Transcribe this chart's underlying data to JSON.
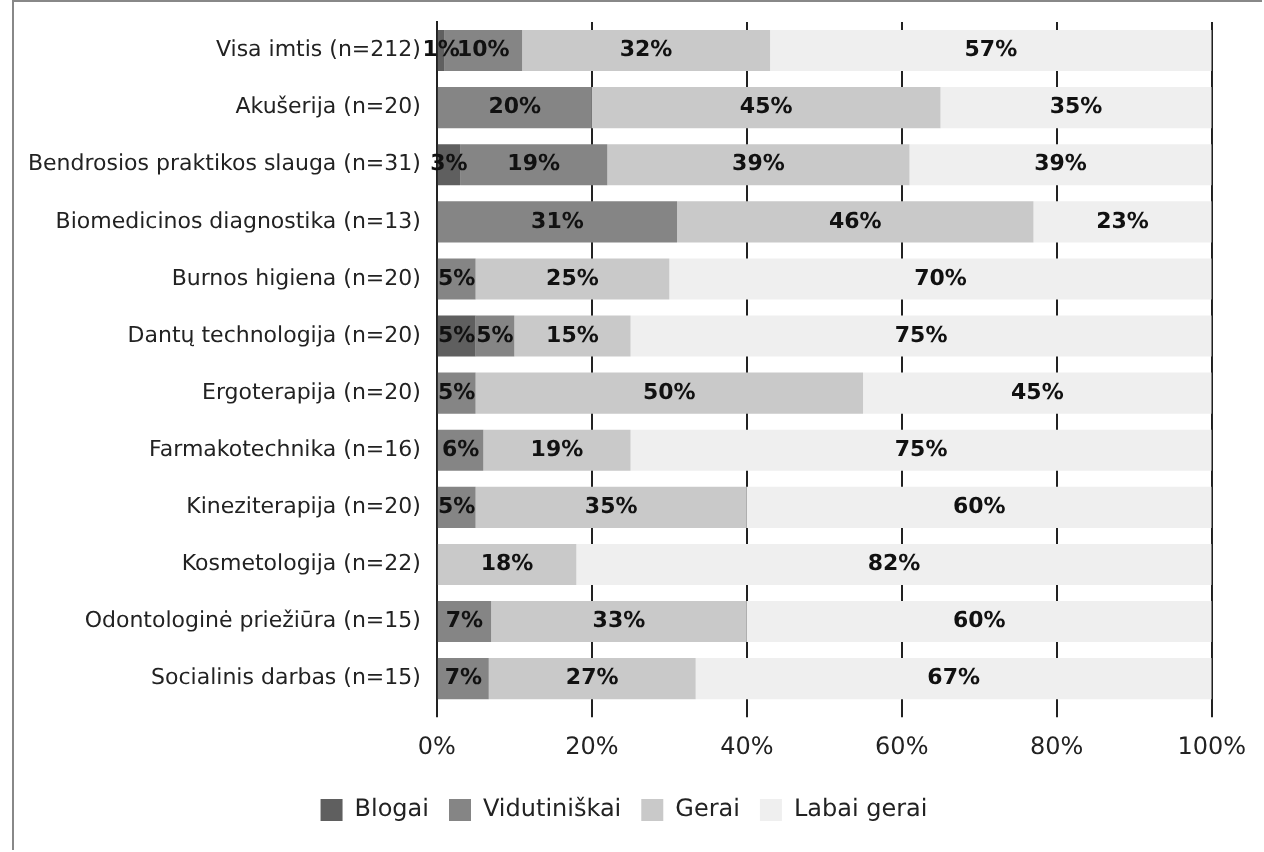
{
  "chart_data": {
    "type": "bar",
    "orientation": "horizontal",
    "stacked": true,
    "categories": [
      "Visa imtis (n=212)",
      "Akušerija (n=20)",
      "Bendrosios praktikos slauga (n=31)",
      "Biomedicinos diagnostika (n=13)",
      "Burnos higiena (n=20)",
      "Dantų technologija (n=20)",
      "Ergoterapija (n=20)",
      "Farmakotechnika (n=16)",
      "Kineziterapija (n=20)",
      "Kosmetologija (n=22)",
      "Odontologinė priežiūra (n=15)",
      "Socialinis darbas (n=15)"
    ],
    "series": [
      {
        "name": "Blogai",
        "color": "#5f5f5f",
        "values": [
          1,
          null,
          3,
          null,
          null,
          5,
          null,
          null,
          null,
          null,
          null,
          null
        ],
        "value_labels": [
          "1%",
          null,
          "3%",
          null,
          null,
          "5%",
          null,
          null,
          null,
          null,
          null,
          null
        ]
      },
      {
        "name": "Vidutiniškai",
        "color": "#858585",
        "values": [
          10,
          20,
          19,
          31,
          5,
          5,
          5,
          6,
          5,
          null,
          7,
          6.7
        ],
        "value_labels": [
          "10%",
          "20%",
          "19%",
          "31%",
          "5%",
          "5%",
          "5%",
          "6%",
          "5%",
          null,
          "7%",
          "7%"
        ]
      },
      {
        "name": "Gerai",
        "color": "#c9c9c9",
        "values": [
          32,
          45,
          39,
          46,
          25,
          15,
          50,
          19,
          35,
          18,
          33,
          26.7
        ],
        "value_labels": [
          "32%",
          "45%",
          "39%",
          "46%",
          "25%",
          "15%",
          "50%",
          "19%",
          "35%",
          "18%",
          "33%",
          "27%"
        ]
      },
      {
        "name": "Labai gerai",
        "color": "#efefef",
        "values": [
          57,
          35,
          39,
          23,
          70,
          75,
          45,
          75,
          60,
          82,
          60,
          66.6
        ],
        "value_labels": [
          "57%",
          "35%",
          "39%",
          "23%",
          "70%",
          "75%",
          "45%",
          "75%",
          "60%",
          "82%",
          "60%",
          "67%"
        ]
      }
    ],
    "xlim": [
      0,
      100
    ],
    "xticks": [
      {
        "value": 0,
        "label": "0%"
      },
      {
        "value": 20,
        "label": "20%"
      },
      {
        "value": 40,
        "label": "40%"
      },
      {
        "value": 60,
        "label": "60%"
      },
      {
        "value": 80,
        "label": "80%"
      },
      {
        "value": 100,
        "label": "100%"
      }
    ],
    "grid": "x",
    "legend": "bottom"
  }
}
